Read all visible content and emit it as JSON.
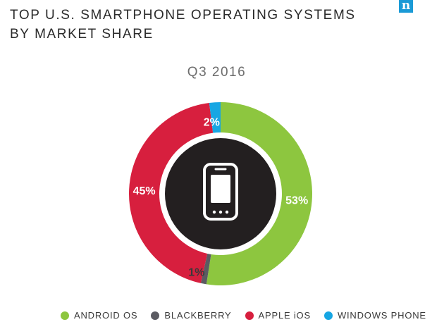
{
  "header": {
    "title_line1": "TOP U.S. SMARTPHONE OPERATING SYSTEMS",
    "title_line2": "BY MARKET SHARE",
    "logo_text": "n"
  },
  "chart_data": {
    "type": "pie",
    "title": "TOP U.S. SMARTPHONE OPERATING SYSTEMS BY MARKET SHARE",
    "subtitle": "Q3 2016",
    "donut": true,
    "center_icon": "smartphone-icon",
    "slices": [
      {
        "name": "ANDROID OS",
        "value": 53,
        "label": "53%",
        "color": "#8dc63f"
      },
      {
        "name": "BLACKBERRY",
        "value": 1,
        "label": "1%",
        "color": "#5b5b62"
      },
      {
        "name": "APPLE iOS",
        "value": 45,
        "label": "45%",
        "color": "#d71f3e"
      },
      {
        "name": "WINDOWS PHONE",
        "value": 2,
        "label": "2%",
        "color": "#16a6e3"
      }
    ],
    "legend_placement": "bottom"
  }
}
